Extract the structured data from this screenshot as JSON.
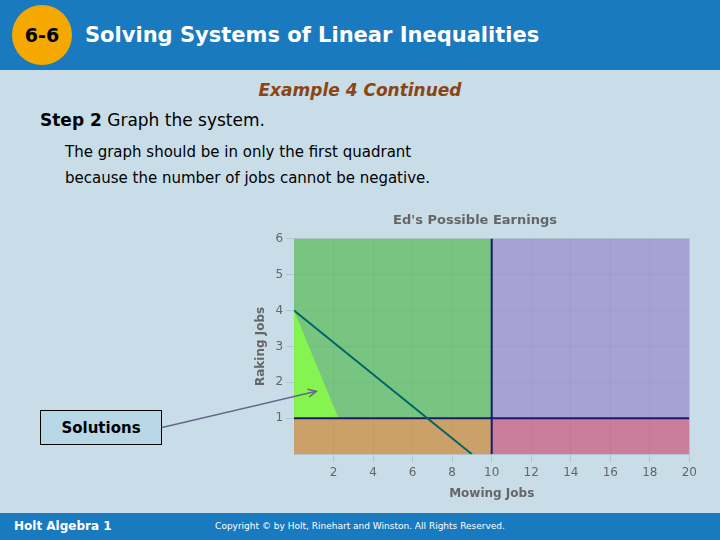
{
  "slide": {
    "badge": "6-6",
    "title": "Solving Systems of Linear Inequalities",
    "subtitle": "Example 4 Continued",
    "step": "Step 2",
    "step_text": " Graph the system.",
    "body": "The graph should be in only the first quadrant\nbecause the number of jobs cannot be negative.",
    "footer_left": "Holt Algebra 1",
    "footer_right": "Copyright © by Holt, Rinehart and Winston. All Rights Reserved.",
    "background": "#c8dde8",
    "header_color": "#1a7abf",
    "badge_color": "#f5a800",
    "subtitle_color": "#8b4513",
    "footer_color": "#1a7abf"
  },
  "chart_data": {
    "type": "region",
    "title": "Ed's Possible Earnings",
    "xlabel": "Mowing Jobs",
    "ylabel": "Raking Jobs",
    "xlim": [
      0,
      20
    ],
    "ylim": [
      0,
      6
    ],
    "xticks": [
      2,
      4,
      6,
      8,
      10,
      12,
      14,
      16,
      18,
      20
    ],
    "yticks": [
      1,
      2,
      3,
      4,
      5,
      6
    ],
    "grid": true,
    "series": [
      {
        "type": "area",
        "color": "#55bb55",
        "x": [
          0,
          10
        ],
        "values": [
          6,
          6
        ],
        "base": [
          1,
          1
        ]
      },
      {
        "type": "area",
        "color": "#9988cc",
        "x": [
          10,
          20
        ],
        "values": [
          6,
          6
        ],
        "base": [
          1,
          1
        ]
      },
      {
        "type": "area",
        "color": "#cc8833",
        "x": [
          0,
          10
        ],
        "values": [
          1,
          1
        ],
        "base": [
          0,
          0
        ]
      },
      {
        "type": "area",
        "color": "#cc5577",
        "x": [
          10,
          20
        ],
        "values": [
          1,
          1
        ],
        "base": [
          0,
          0
        ]
      },
      {
        "type": "area",
        "color": "#88ff44",
        "x": [
          0,
          2.25
        ],
        "values": [
          4,
          1
        ],
        "base": [
          1,
          1
        ],
        "label": "Solutions",
        "label_color": "#b8d8e8"
      },
      {
        "type": "line",
        "color": "#006666",
        "x": [
          0,
          9
        ],
        "values": [
          4,
          0
        ]
      },
      {
        "type": "line",
        "color": "#1a1a6e",
        "x": [
          10,
          10
        ],
        "values": [
          0,
          6
        ]
      },
      {
        "type": "line",
        "color": "#1a1a6e",
        "x": [
          0,
          20
        ],
        "values": [
          1,
          1
        ]
      }
    ]
  }
}
